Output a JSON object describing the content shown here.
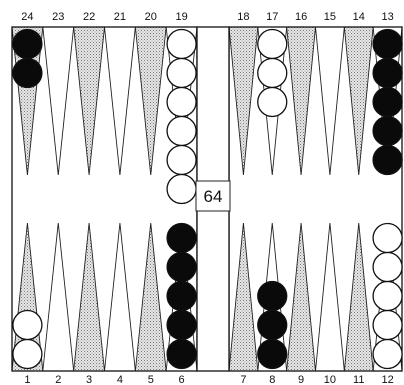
{
  "board": {
    "top_labels": [
      "24",
      "23",
      "22",
      "21",
      "20",
      "19",
      "18",
      "17",
      "16",
      "15",
      "14",
      "13"
    ],
    "bottom_labels": [
      "1",
      "2",
      "3",
      "4",
      "5",
      "6",
      "7",
      "8",
      "9",
      "10",
      "11",
      "12"
    ],
    "checkers": [
      {
        "point": 24,
        "color": "black",
        "count": 2
      },
      {
        "point": 19,
        "color": "white",
        "count": 6
      },
      {
        "point": 17,
        "color": "white",
        "count": 3
      },
      {
        "point": 13,
        "color": "black",
        "count": 5
      },
      {
        "point": 1,
        "color": "white",
        "count": 2
      },
      {
        "point": 6,
        "color": "black",
        "count": 5
      },
      {
        "point": 8,
        "color": "black",
        "count": 3
      },
      {
        "point": 12,
        "color": "white",
        "count": 5
      }
    ],
    "cube_value": "64",
    "colors": {
      "dark_point": "#bdbdbd",
      "light_point": "#ffffff",
      "black_checker": "#0a0a0a",
      "white_checker": "#ffffff",
      "frame": "#111111"
    }
  }
}
